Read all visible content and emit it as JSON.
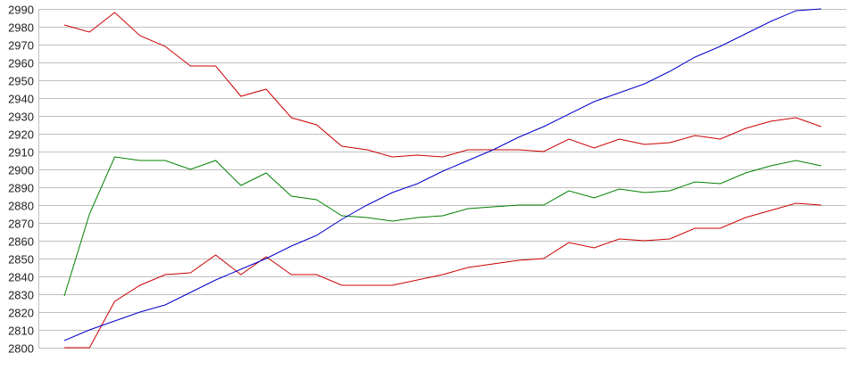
{
  "chart_data": {
    "type": "line",
    "title": "",
    "xlabel": "",
    "ylabel": "",
    "ylim": [
      2800,
      2990
    ],
    "yticks": [
      "2800",
      "2810",
      "2820",
      "2830",
      "2840",
      "2850",
      "2860",
      "2870",
      "2880",
      "2890",
      "2900",
      "2910",
      "2920",
      "2930",
      "2940",
      "2950",
      "2960",
      "2970",
      "2980",
      "2990"
    ],
    "grid": true,
    "legend": "none",
    "x": [
      1,
      2,
      3,
      4,
      5,
      6,
      7,
      8,
      9,
      10,
      11,
      12,
      13,
      14,
      15,
      16,
      17,
      18,
      19,
      20,
      21,
      22,
      23,
      24,
      25,
      26,
      27,
      28,
      29,
      30,
      31
    ],
    "series": [
      {
        "color": "#cc0000",
        "values": [
          2981,
          2977,
          2988,
          2975,
          2969,
          2958,
          2958,
          2941,
          2945,
          2929,
          2925,
          2913,
          2911,
          2907,
          2908,
          2907,
          2911,
          2911,
          2911,
          2910,
          2917,
          2912,
          2917,
          2914,
          2915,
          2919,
          2917,
          2923,
          2927,
          2929,
          2924
        ]
      },
      {
        "color": "#008000",
        "values": [
          2829,
          2875,
          2907,
          2905,
          2905,
          2900,
          2905,
          2891,
          2898,
          2885,
          2883,
          2874,
          2873,
          2871,
          2873,
          2874,
          2878,
          2879,
          2880,
          2880,
          2888,
          2884,
          2889,
          2887,
          2888,
          2893,
          2892,
          2898,
          2902,
          2905,
          2902
        ]
      },
      {
        "color": "#cc0000",
        "values": [
          2800,
          2800,
          2826,
          2835,
          2841,
          2842,
          2852,
          2841,
          2851,
          2841,
          2841,
          2835,
          2835,
          2835,
          2838,
          2841,
          2845,
          2847,
          2849,
          2850,
          2859,
          2856,
          2861,
          2860,
          2861,
          2867,
          2867,
          2873,
          2877,
          2881,
          2880
        ]
      },
      {
        "color": "#0000cc",
        "values": [
          2804,
          2810,
          2815,
          2820,
          2824,
          2831,
          2838,
          2844,
          2850,
          2857,
          2863,
          2872,
          2880,
          2887,
          2892,
          2899,
          2905,
          2911,
          2918,
          2924,
          2931,
          2938,
          2943,
          2948,
          2955,
          2963,
          2969,
          2976,
          2983,
          2989,
          2990
        ]
      }
    ]
  }
}
